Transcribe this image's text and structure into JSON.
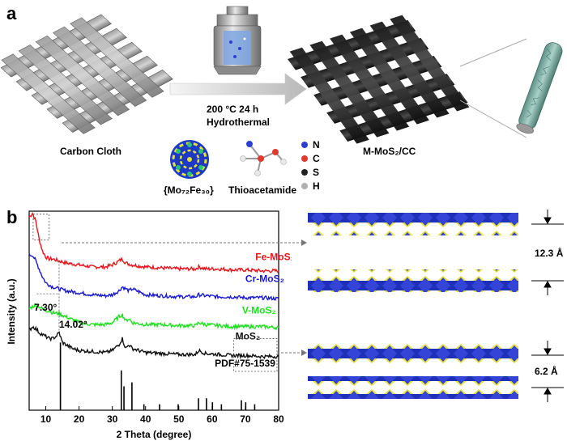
{
  "panel_a": {
    "label": "a",
    "carbon_cloth_label": "Carbon Cloth",
    "condition_line1": "200 °C 24 h",
    "condition_line2": "Hydrothermal",
    "product_label": "M-MoS₂/CC",
    "precursor1_label": "{Mo₇₂Fe₃₀}",
    "precursor2_label": "Thioacetamide",
    "legend": [
      {
        "symbol": "N",
        "color": "#2d3fd1"
      },
      {
        "symbol": "C",
        "color": "#e03a2f"
      },
      {
        "symbol": "S",
        "color": "#222222"
      },
      {
        "symbol": "H",
        "color": "#b0b0b0"
      }
    ]
  },
  "panel_b": {
    "label": "b",
    "interlayer_top": "12.3 Å",
    "interlayer_bottom": "6.2 Å",
    "peak_label_1": "7.30°",
    "peak_label_2": "14.02°"
  },
  "chart_data": {
    "type": "line",
    "xlabel": "2 Theta (degree)",
    "ylabel": "Intensity (a.u.)",
    "xlim": [
      5,
      80
    ],
    "xticks": [
      10,
      20,
      30,
      40,
      50,
      60,
      70,
      80
    ],
    "series": [
      {
        "name": "Fe-MoS₂",
        "color": "#e8141a",
        "x": [
          5,
          6,
          7,
          8,
          9,
          10,
          11,
          12,
          14,
          16,
          18,
          20,
          24,
          28,
          30,
          32,
          33,
          34,
          36,
          40,
          45,
          50,
          55,
          56,
          58,
          62,
          66,
          70,
          75,
          80
        ],
        "y": [
          0.97,
          0.99,
          0.95,
          0.86,
          0.8,
          0.77,
          0.76,
          0.76,
          0.75,
          0.74,
          0.735,
          0.73,
          0.72,
          0.72,
          0.73,
          0.75,
          0.76,
          0.74,
          0.73,
          0.72,
          0.715,
          0.71,
          0.71,
          0.72,
          0.71,
          0.71,
          0.705,
          0.705,
          0.7,
          0.7
        ]
      },
      {
        "name": "Cr-MoS₂",
        "color": "#1a1acc",
        "x": [
          5,
          6,
          7,
          8,
          9,
          10,
          12,
          14,
          16,
          18,
          20,
          24,
          28,
          30,
          32,
          33,
          34,
          35,
          36,
          40,
          45,
          50,
          55,
          56,
          58,
          62,
          66,
          70,
          75,
          80
        ],
        "y": [
          0.78,
          0.78,
          0.75,
          0.71,
          0.67,
          0.64,
          0.62,
          0.61,
          0.6,
          0.595,
          0.59,
          0.58,
          0.575,
          0.58,
          0.6,
          0.62,
          0.61,
          0.6,
          0.61,
          0.58,
          0.575,
          0.57,
          0.57,
          0.58,
          0.575,
          0.57,
          0.57,
          0.565,
          0.565,
          0.56
        ]
      },
      {
        "name": "V-MoS₂",
        "color": "#1fe01f",
        "x": [
          5,
          6,
          7,
          8,
          9,
          10,
          11,
          12,
          14,
          16,
          18,
          20,
          24,
          28,
          30,
          32,
          33,
          34,
          35,
          36,
          40,
          45,
          50,
          55,
          56,
          58,
          62,
          66,
          70,
          75,
          80
        ],
        "y": [
          0.51,
          0.52,
          0.53,
          0.52,
          0.51,
          0.5,
          0.5,
          0.49,
          0.485,
          0.47,
          0.455,
          0.44,
          0.43,
          0.43,
          0.44,
          0.47,
          0.48,
          0.45,
          0.46,
          0.44,
          0.43,
          0.43,
          0.425,
          0.425,
          0.44,
          0.43,
          0.425,
          0.42,
          0.42,
          0.42,
          0.415
        ]
      },
      {
        "name": "MoS₂",
        "color": "#111111",
        "x": [
          5,
          6,
          7,
          8,
          9,
          10,
          11,
          12,
          13,
          14,
          15,
          16,
          18,
          20,
          24,
          28,
          30,
          32,
          33,
          34,
          35,
          36,
          40,
          45,
          50,
          55,
          56,
          58,
          62,
          66,
          70,
          75,
          80
        ],
        "y": [
          0.4,
          0.42,
          0.41,
          0.39,
          0.38,
          0.37,
          0.36,
          0.36,
          0.37,
          0.39,
          0.34,
          0.33,
          0.31,
          0.3,
          0.295,
          0.29,
          0.3,
          0.33,
          0.36,
          0.31,
          0.33,
          0.31,
          0.29,
          0.285,
          0.28,
          0.28,
          0.3,
          0.285,
          0.28,
          0.275,
          0.275,
          0.27,
          0.27
        ]
      }
    ],
    "reference": {
      "name": "PDF#75-1539",
      "peaks_x": [
        14.4,
        32.7,
        33.5,
        35.9,
        39.5,
        44.2,
        49.8,
        55.9,
        58.3,
        60.1,
        62.8,
        68.8,
        70.1,
        72.8
      ],
      "peaks_h": [
        0.34,
        0.2,
        0.12,
        0.14,
        0.03,
        0.03,
        0.03,
        0.06,
        0.06,
        0.04,
        0.03,
        0.05,
        0.04,
        0.03
      ]
    }
  }
}
